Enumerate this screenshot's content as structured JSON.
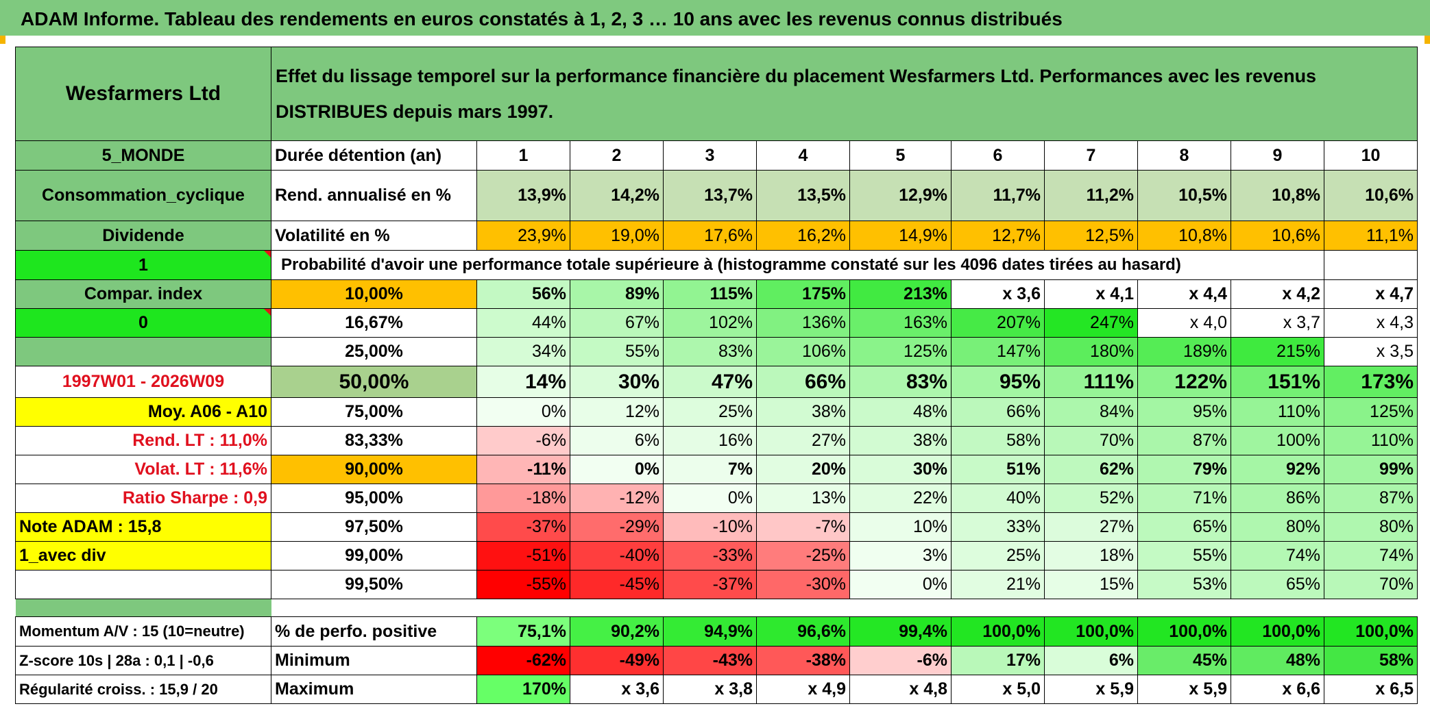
{
  "title": "ADAM Informe. Tableau des rendements en euros constatés à 1, 2, 3 … 10 ans avec les revenus connus distribués",
  "header": {
    "name": "Wesfarmers Ltd",
    "description": "Effet du lissage temporel sur la performance financière du placement Wesfarmers Ltd. Performances avec les revenus DISTRIBUES depuis mars 1997."
  },
  "left": {
    "zone": "5_MONDE",
    "sector": "Consommation_cyclique",
    "type": "Dividende",
    "one": "1",
    "compar": "Compar. index",
    "zero": "0",
    "period": "1997W01 - 2026W09",
    "moy": "Moy. A06 - A10",
    "rend_lt": "Rend. LT :    11,0%",
    "volat_lt": "Volat. LT :    11,6%",
    "sharpe": "Ratio Sharpe :    0,9",
    "note": "Note ADAM : 15,8",
    "avec_div": "1_avec div",
    "momentum": "Momentum A/V : 15 (10=neutre)",
    "zscore": "Z-score 10s | 28a : 0,1 | -0,6",
    "regularite": "Régularité croiss. : 15,9 / 20"
  },
  "labels": {
    "duree": "Durée détention (an)",
    "rend": "Rend. annualisé en %",
    "volat": "Volatilité en %",
    "proba": "Probabilité d'avoir une performance totale supérieure à (histogramme constaté sur les 4096 dates tirées au hasard)",
    "positive": "% de perfo. positive",
    "minimum": "Minimum",
    "maximum": "Maximum"
  },
  "years": [
    "1",
    "2",
    "3",
    "4",
    "5",
    "6",
    "7",
    "8",
    "9",
    "10"
  ],
  "rend": [
    "13,9%",
    "14,2%",
    "13,7%",
    "13,5%",
    "12,9%",
    "11,7%",
    "11,2%",
    "10,5%",
    "10,8%",
    "10,6%"
  ],
  "volat": [
    "23,9%",
    "19,0%",
    "17,6%",
    "16,2%",
    "14,9%",
    "12,7%",
    "12,5%",
    "10,8%",
    "10,6%",
    "11,1%"
  ],
  "prob_rows": [
    {
      "p": "10,00%",
      "v": [
        "56%",
        "89%",
        "115%",
        "175%",
        "213%",
        "x 3,6",
        "x 4,1",
        "x 4,4",
        "x 4,2",
        "x 4,7"
      ]
    },
    {
      "p": "16,67%",
      "v": [
        "44%",
        "67%",
        "102%",
        "136%",
        "163%",
        "207%",
        "247%",
        "x 4,0",
        "x 3,7",
        "x 4,3"
      ]
    },
    {
      "p": "25,00%",
      "v": [
        "34%",
        "55%",
        "83%",
        "106%",
        "125%",
        "147%",
        "180%",
        "189%",
        "215%",
        "x 3,5"
      ]
    },
    {
      "p": "50,00%",
      "v": [
        "14%",
        "30%",
        "47%",
        "66%",
        "83%",
        "95%",
        "111%",
        "122%",
        "151%",
        "173%"
      ]
    },
    {
      "p": "75,00%",
      "v": [
        "0%",
        "12%",
        "25%",
        "38%",
        "48%",
        "66%",
        "84%",
        "95%",
        "110%",
        "125%"
      ]
    },
    {
      "p": "83,33%",
      "v": [
        "-6%",
        "6%",
        "16%",
        "27%",
        "38%",
        "58%",
        "70%",
        "87%",
        "100%",
        "110%"
      ]
    },
    {
      "p": "90,00%",
      "v": [
        "-11%",
        "0%",
        "7%",
        "20%",
        "30%",
        "51%",
        "62%",
        "79%",
        "92%",
        "99%"
      ]
    },
    {
      "p": "95,00%",
      "v": [
        "-18%",
        "-12%",
        "0%",
        "13%",
        "22%",
        "40%",
        "52%",
        "71%",
        "86%",
        "87%"
      ]
    },
    {
      "p": "97,50%",
      "v": [
        "-37%",
        "-29%",
        "-10%",
        "-7%",
        "10%",
        "33%",
        "27%",
        "65%",
        "80%",
        "80%"
      ]
    },
    {
      "p": "99,00%",
      "v": [
        "-51%",
        "-40%",
        "-33%",
        "-25%",
        "3%",
        "25%",
        "18%",
        "55%",
        "74%",
        "74%"
      ]
    },
    {
      "p": "99,50%",
      "v": [
        "-55%",
        "-45%",
        "-37%",
        "-30%",
        "0%",
        "21%",
        "15%",
        "53%",
        "65%",
        "70%"
      ]
    }
  ],
  "positive": [
    "75,1%",
    "90,2%",
    "94,9%",
    "96,6%",
    "99,4%",
    "100,0%",
    "100,0%",
    "100,0%",
    "100,0%",
    "100,0%"
  ],
  "minimum": [
    "-62%",
    "-49%",
    "-43%",
    "-38%",
    "-6%",
    "17%",
    "6%",
    "45%",
    "48%",
    "58%"
  ],
  "maximum": [
    "170%",
    "x 3,6",
    "x 3,8",
    "x 4,9",
    "x 4,8",
    "x 5,0",
    "x 5,9",
    "x 5,9",
    "x 6,6",
    "x 6,5"
  ],
  "colors": {
    "title_green": "#7fc97f",
    "header_green": "#7ec87e",
    "bright_green": "#1ee61e",
    "orange": "#ffc000",
    "yellow": "#ffff00",
    "rend_green": "#c6e0b4",
    "red_text": "#e0101e"
  }
}
